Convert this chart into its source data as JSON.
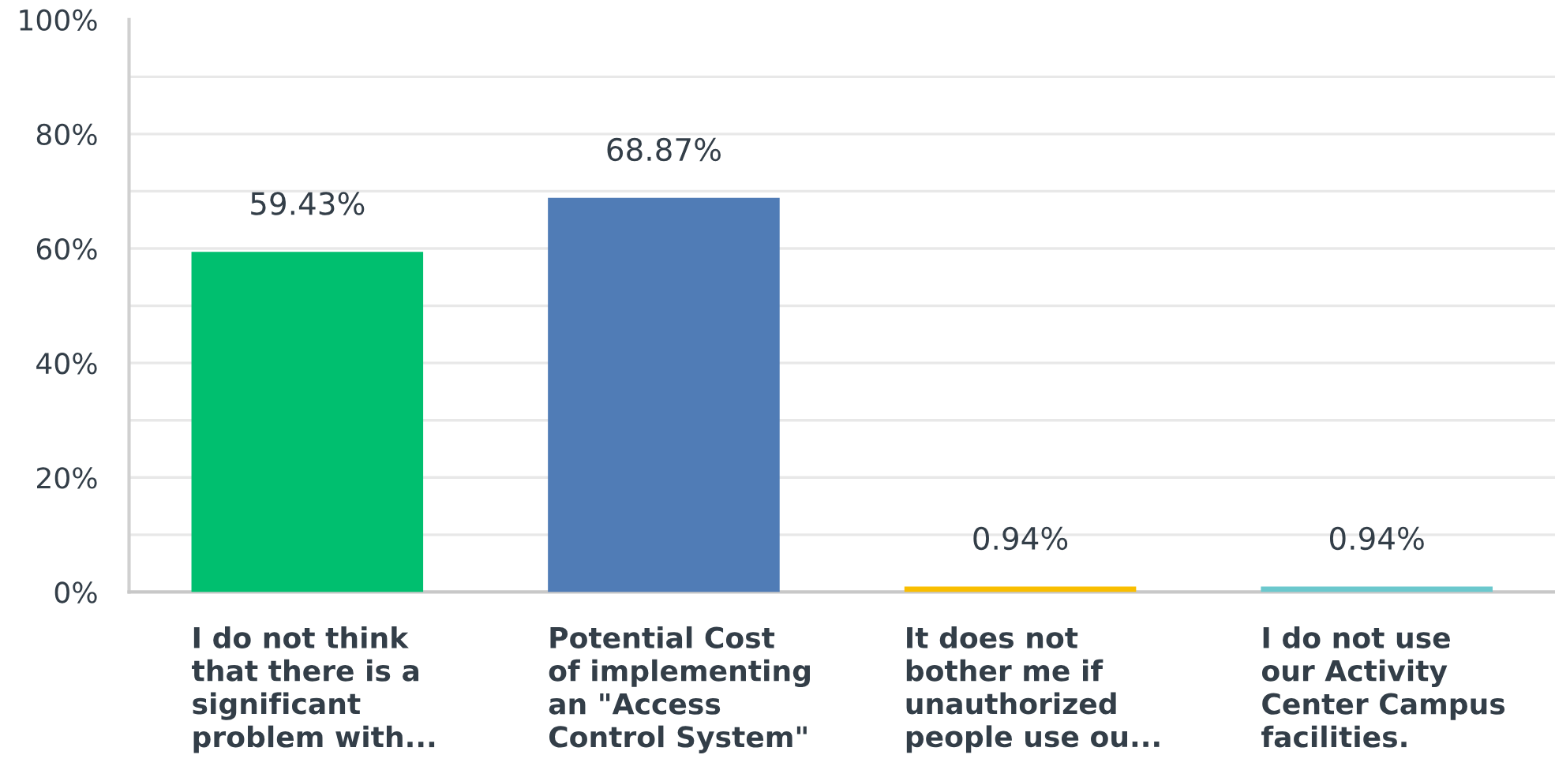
{
  "chart_data": {
    "type": "bar",
    "categories": [
      "I do not think\nthat there is a\nsignificant\nproblem with...",
      "Potential Cost\nof implementing\nan \"Access\nControl System\"",
      "It does not\nbother me if\nunauthorized\npeople use ou...",
      "I do not use\nour Activity\nCenter Campus\nfacilities."
    ],
    "values": [
      59.43,
      68.87,
      0.94,
      0.94
    ],
    "colors": [
      "#00bf6f",
      "#507cb6",
      "#f9be00",
      "#6bc8cd"
    ],
    "value_labels": [
      "59.43%",
      "68.87%",
      "0.94%",
      "0.94%"
    ],
    "ylim": [
      0,
      100
    ],
    "yticks": [
      {
        "value": 0,
        "label": "0%"
      },
      {
        "value": 10,
        "label": null
      },
      {
        "value": 20,
        "label": "20%"
      },
      {
        "value": 30,
        "label": null
      },
      {
        "value": 40,
        "label": "40%"
      },
      {
        "value": 50,
        "label": null
      },
      {
        "value": 60,
        "label": "60%"
      },
      {
        "value": 70,
        "label": null
      },
      {
        "value": 80,
        "label": "80%"
      },
      {
        "value": 90,
        "label": null
      },
      {
        "value": 100,
        "label": "100%"
      }
    ],
    "grid": "y",
    "legend": false
  }
}
